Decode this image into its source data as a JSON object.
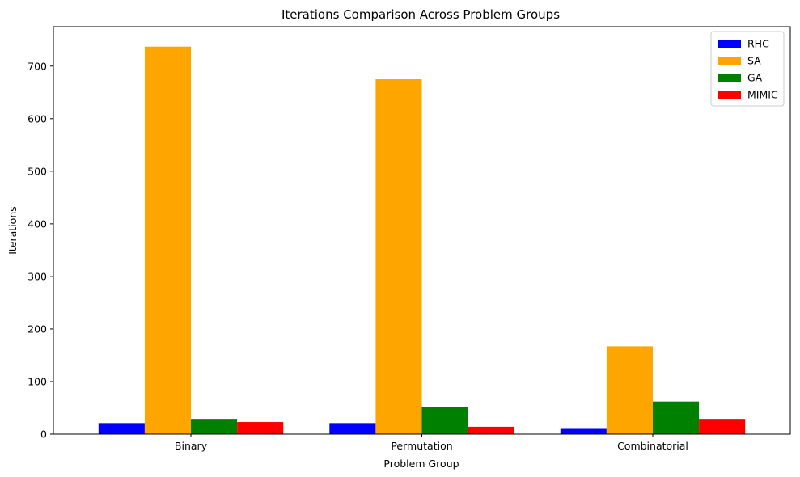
{
  "chart_data": {
    "type": "bar",
    "title": "Iterations Comparison Across Problem Groups",
    "xlabel": "Problem Group",
    "ylabel": "Iterations",
    "categories": [
      "Binary",
      "Permutation",
      "Combinatorial"
    ],
    "series": [
      {
        "name": "RHC",
        "color": "#0000ff",
        "values": [
          21,
          21,
          10
        ]
      },
      {
        "name": "SA",
        "color": "#ffa500",
        "values": [
          737,
          675,
          167
        ]
      },
      {
        "name": "GA",
        "color": "#008000",
        "values": [
          29,
          52,
          62
        ]
      },
      {
        "name": "MIMIC",
        "color": "#ff0000",
        "values": [
          23,
          14,
          29
        ]
      }
    ],
    "ylim": [
      0,
      775
    ],
    "yticks": [
      0,
      100,
      200,
      300,
      400,
      500,
      600,
      700
    ],
    "grid": false,
    "legend_position": "top-right"
  }
}
